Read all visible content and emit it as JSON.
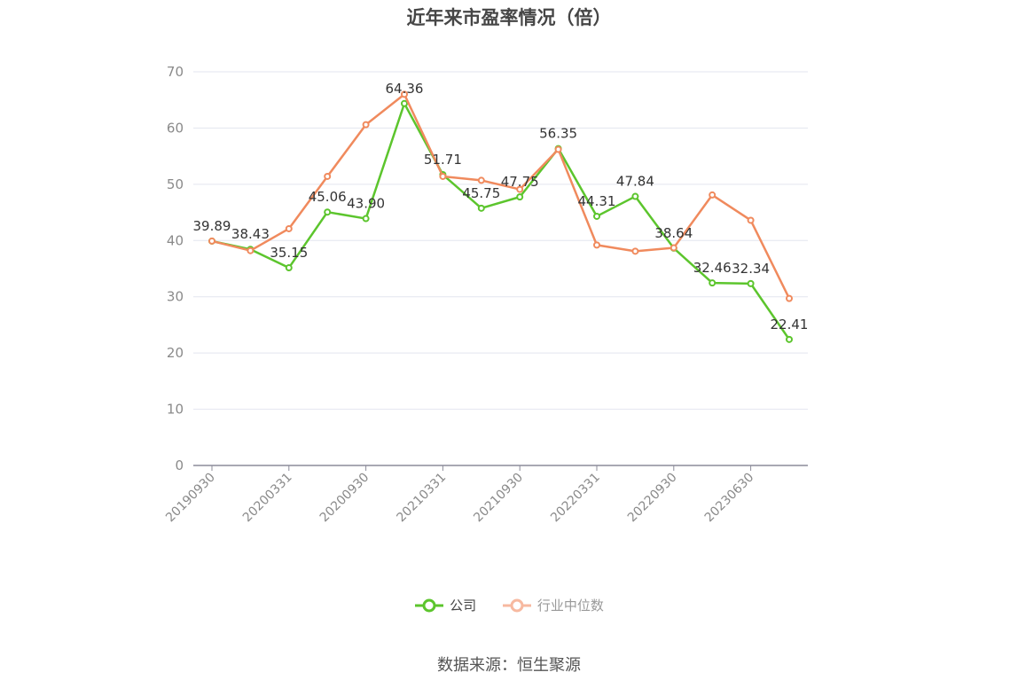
{
  "chart_data": {
    "type": "line",
    "title": "近年来市盈率情况（倍）",
    "xlabel": "",
    "ylabel": "",
    "ylim": [
      0,
      70
    ],
    "yticks": [
      0,
      10,
      20,
      30,
      40,
      50,
      60,
      70
    ],
    "x_tick_labels": [
      "20190930",
      "20200331",
      "20200930",
      "20210331",
      "20210930",
      "20220331",
      "20220930",
      "20230630"
    ],
    "grid": true,
    "legend_position": "bottom",
    "series": [
      {
        "name": "公司",
        "color": "#5cc52d",
        "values": [
          39.89,
          38.43,
          35.15,
          45.06,
          43.9,
          64.36,
          51.71,
          45.75,
          47.75,
          56.35,
          44.31,
          47.84,
          38.64,
          32.46,
          32.34,
          22.41
        ],
        "labels": [
          "39.89",
          "38.43",
          "35.15",
          "45.06",
          "43.90",
          "64.36",
          "51.71",
          "45.75",
          "47.75",
          "56.35",
          "44.31",
          "47.84",
          "38.64",
          "32.46",
          "32.34",
          "22.41"
        ]
      },
      {
        "name": "行业中位数",
        "color": "#f08a5d",
        "values": [
          39.9,
          38.2,
          42.1,
          51.4,
          60.6,
          66.0,
          51.4,
          50.7,
          49.1,
          56.2,
          39.2,
          38.1,
          38.7,
          48.1,
          43.6,
          29.7
        ]
      }
    ]
  },
  "legend": {
    "company": "公司",
    "industry": "行业中位数"
  },
  "source": "数据来源：恒生聚源"
}
